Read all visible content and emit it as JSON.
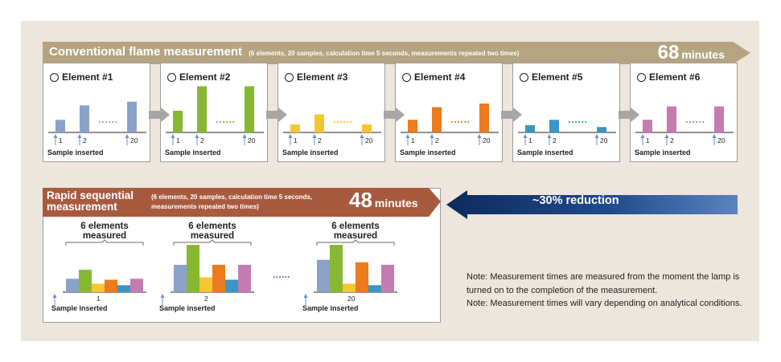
{
  "colors": {
    "panel_bg": "#ece6dc",
    "top_banner": "#b5a481",
    "rapid_banner": "#a85a3e",
    "reduction_arrow_dark": "#0e2a5c",
    "reduction_arrow_light": "#4f77b4",
    "gray_arrow": "#a6a6a6"
  },
  "top_banner": {
    "title": "Conventional flame measurement",
    "subtitle": "(6 elements, 20 samples, calculation time 5 seconds, measurements repeated two times)",
    "time_value": "68",
    "time_unit": "minutes"
  },
  "elements": [
    {
      "title": "Element #1",
      "color": "#8ba2c8",
      "values": [
        0.35,
        0.75,
        0.85
      ]
    },
    {
      "title": "Element #2",
      "color": "#86b832",
      "values": [
        0.6,
        1.28,
        1.28
      ]
    },
    {
      "title": "Element #3",
      "color": "#f6c533",
      "values": [
        0.22,
        0.5,
        0.22
      ]
    },
    {
      "title": "Element #4",
      "color": "#ec7a1f",
      "values": [
        0.35,
        0.7,
        0.8
      ]
    },
    {
      "title": "Element #5",
      "color": "#3b96c8",
      "values": [
        0.2,
        0.35,
        0.15
      ]
    },
    {
      "title": "Element #6",
      "color": "#c47bb2",
      "values": [
        0.35,
        0.72,
        0.72
      ]
    }
  ],
  "sample_ticks": [
    "1",
    "2",
    "20"
  ],
  "sample_inserted_label": "Sample inserted",
  "dots": "......",
  "rapid": {
    "title_line1": "Rapid sequential",
    "title_line2": "measurement",
    "subtitle_line1": "(6 elements, 20 samples, calculation time 5 seconds,",
    "subtitle_line2": "measurements repeated two times)",
    "time_value": "48",
    "time_unit": "minutes",
    "group_label_line1": "6 elements",
    "group_label_line2": "measured",
    "groups": [
      {
        "tick": "1",
        "values": [
          0.27,
          0.45,
          0.17,
          0.25,
          0.14,
          0.27
        ]
      },
      {
        "tick": "2",
        "values": [
          0.55,
          0.95,
          0.3,
          0.55,
          0.25,
          0.55
        ]
      },
      {
        "tick": "20",
        "values": [
          0.65,
          0.95,
          0.17,
          0.6,
          0.14,
          0.55
        ]
      }
    ],
    "sample_inserted_label": "Sample inserted"
  },
  "reduction_label": "~30% reduction",
  "notes": [
    "Note: Measurement times are measured from the moment the lamp is turned on to the completion of the measurement.",
    "Note: Measurement times will vary depending on analytical conditions."
  ]
}
